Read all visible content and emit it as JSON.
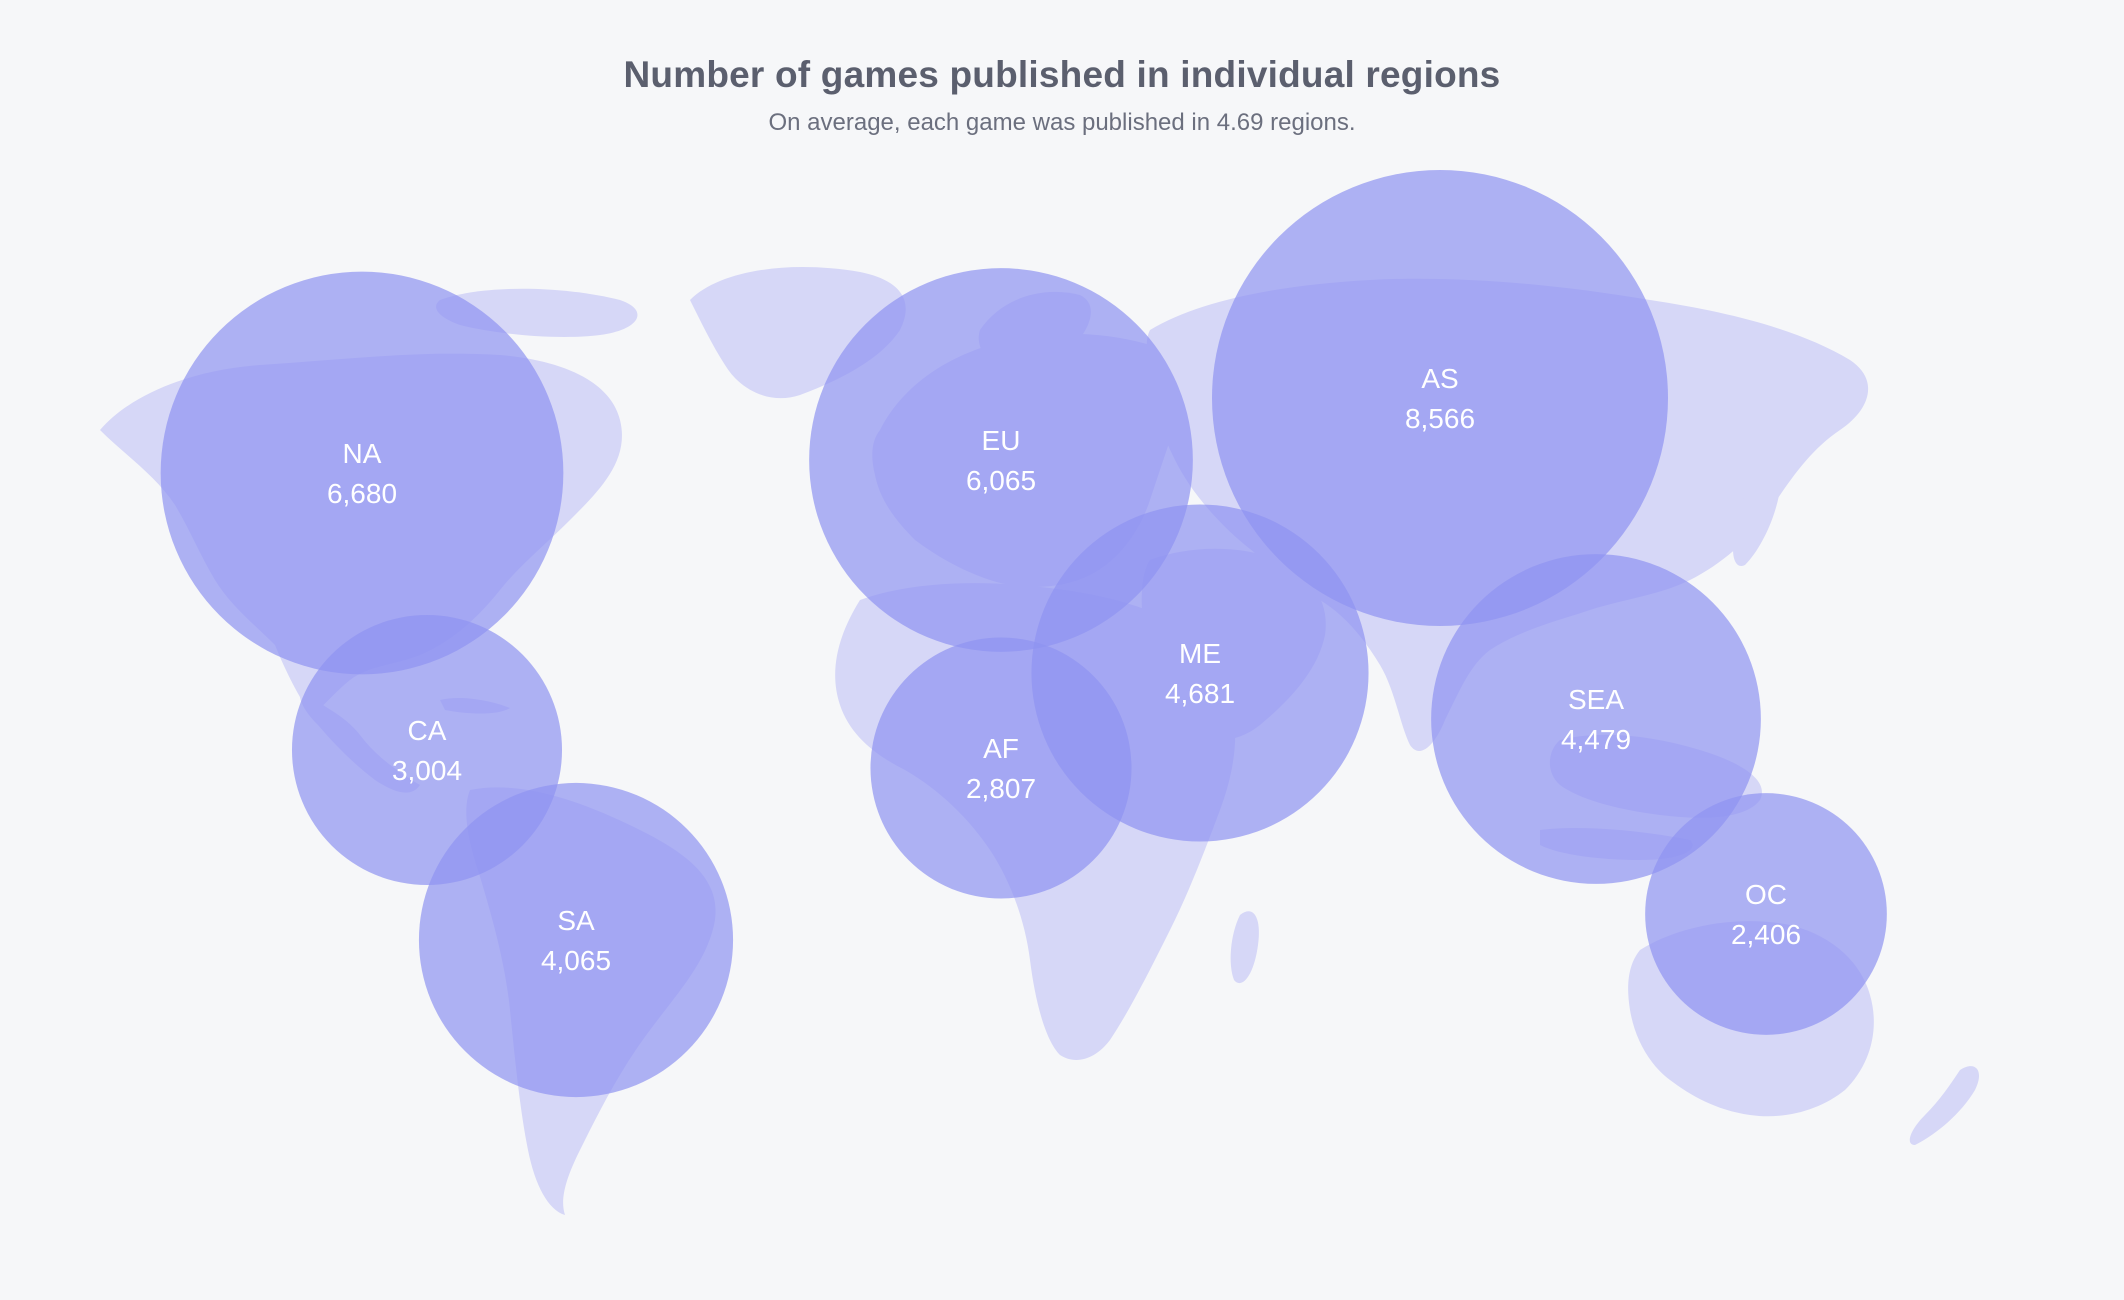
{
  "header": {
    "title": "Number of games published in individual regions",
    "subtitle": "On average, each game was published in 4.69 regions."
  },
  "colors": {
    "background": "#f6f7f9",
    "land": "#d6d7f7",
    "bubble": "#8e93f1",
    "text": "#5b5f6e"
  },
  "chart_data": {
    "type": "bubble-map",
    "title": "Number of games published in individual regions",
    "subtitle": "On average, each game was published in 4.69 regions.",
    "regions": [
      {
        "label": "NA",
        "value": 6680,
        "display": "6,680"
      },
      {
        "label": "CA",
        "value": 3004,
        "display": "3,004"
      },
      {
        "label": "SA",
        "value": 4065,
        "display": "4,065"
      },
      {
        "label": "EU",
        "value": 6065,
        "display": "6,065"
      },
      {
        "label": "AF",
        "value": 2807,
        "display": "2,807"
      },
      {
        "label": "ME",
        "value": 4681,
        "display": "4,681"
      },
      {
        "label": "AS",
        "value": 8566,
        "display": "8,566"
      },
      {
        "label": "SEA",
        "value": 4479,
        "display": "4,479"
      },
      {
        "label": "OC",
        "value": 2406,
        "display": "2,406"
      }
    ]
  }
}
